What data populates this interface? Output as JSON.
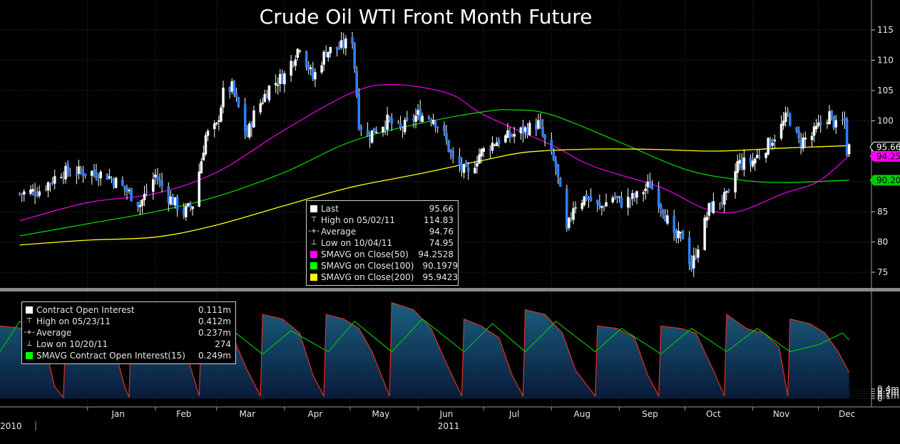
{
  "chart_data": [
    {
      "type": "candlestick",
      "title": "Crude Oil WTI Front Month Future",
      "y_ticks": [
        "115",
        "110",
        "105",
        "100",
        "95",
        "90",
        "85",
        "80",
        "75"
      ],
      "ylim": [
        73,
        118
      ],
      "grid": true,
      "price_flags": [
        {
          "label": "95.66",
          "value": 95.66,
          "color": "#ffffff"
        },
        {
          "label": "94.25",
          "value": 94.25,
          "color": "#ff00ff"
        },
        {
          "label": "90.20",
          "value": 90.1979,
          "color": "#00cc00"
        }
      ],
      "close_path": [
        {
          "date": "2010-12-01",
          "close": 88.0
        },
        {
          "date": "2010-12-10",
          "close": 88.5
        },
        {
          "date": "2010-12-20",
          "close": 91.5
        },
        {
          "date": "2011-01-03",
          "close": 91.5
        },
        {
          "date": "2011-01-10",
          "close": 91.0
        },
        {
          "date": "2011-01-18",
          "close": 88.8
        },
        {
          "date": "2011-01-25",
          "close": 86.2
        },
        {
          "date": "2011-02-01",
          "close": 91.0
        },
        {
          "date": "2011-02-07",
          "close": 87.5
        },
        {
          "date": "2011-02-14",
          "close": 84.8
        },
        {
          "date": "2011-02-18",
          "close": 86.2
        },
        {
          "date": "2011-02-22",
          "close": 93.5
        },
        {
          "date": "2011-02-24",
          "close": 97.5
        },
        {
          "date": "2011-03-01",
          "close": 99.0
        },
        {
          "date": "2011-03-04",
          "close": 104.5
        },
        {
          "date": "2011-03-08",
          "close": 105.5
        },
        {
          "date": "2011-03-15",
          "close": 97.5
        },
        {
          "date": "2011-03-18",
          "close": 101.0
        },
        {
          "date": "2011-03-25",
          "close": 105.5
        },
        {
          "date": "2011-04-01",
          "close": 107.5
        },
        {
          "date": "2011-04-08",
          "close": 112.5
        },
        {
          "date": "2011-04-14",
          "close": 107.0
        },
        {
          "date": "2011-04-20",
          "close": 111.5
        },
        {
          "date": "2011-04-26",
          "close": 112.0
        },
        {
          "date": "2011-05-02",
          "close": 113.5
        },
        {
          "date": "2011-05-05",
          "close": 99.8
        },
        {
          "date": "2011-05-09",
          "close": 97.2
        },
        {
          "date": "2011-05-12",
          "close": 98.5
        },
        {
          "date": "2011-05-18",
          "close": 100.0
        },
        {
          "date": "2011-05-24",
          "close": 98.5
        },
        {
          "date": "2011-06-01",
          "close": 101.0
        },
        {
          "date": "2011-06-08",
          "close": 100.5
        },
        {
          "date": "2011-06-13",
          "close": 97.5
        },
        {
          "date": "2011-06-17",
          "close": 93.5
        },
        {
          "date": "2011-06-24",
          "close": 91.0
        },
        {
          "date": "2011-06-29",
          "close": 94.5
        },
        {
          "date": "2011-07-06",
          "close": 96.5
        },
        {
          "date": "2011-07-13",
          "close": 97.5
        },
        {
          "date": "2011-07-20",
          "close": 98.5
        },
        {
          "date": "2011-07-26",
          "close": 99.5
        },
        {
          "date": "2011-07-29",
          "close": 96.5
        },
        {
          "date": "2011-08-03",
          "close": 92.5
        },
        {
          "date": "2011-08-08",
          "close": 81.5
        },
        {
          "date": "2011-08-11",
          "close": 86.0
        },
        {
          "date": "2011-08-17",
          "close": 87.5
        },
        {
          "date": "2011-08-23",
          "close": 85.5
        },
        {
          "date": "2011-08-29",
          "close": 87.5
        },
        {
          "date": "2011-09-02",
          "close": 86.5
        },
        {
          "date": "2011-09-09",
          "close": 87.5
        },
        {
          "date": "2011-09-15",
          "close": 89.5
        },
        {
          "date": "2011-09-21",
          "close": 85.5
        },
        {
          "date": "2011-09-26",
          "close": 80.5
        },
        {
          "date": "2011-09-30",
          "close": 81.0
        },
        {
          "date": "2011-10-04",
          "close": 75.8
        },
        {
          "date": "2011-10-07",
          "close": 79.5
        },
        {
          "date": "2011-10-12",
          "close": 85.5
        },
        {
          "date": "2011-10-18",
          "close": 87.0
        },
        {
          "date": "2011-10-21",
          "close": 87.5
        },
        {
          "date": "2011-10-25",
          "close": 93.0
        },
        {
          "date": "2011-10-31",
          "close": 93.0
        },
        {
          "date": "2011-11-04",
          "close": 94.5
        },
        {
          "date": "2011-11-09",
          "close": 96.5
        },
        {
          "date": "2011-11-14",
          "close": 99.0
        },
        {
          "date": "2011-11-17",
          "close": 101.0
        },
        {
          "date": "2011-11-22",
          "close": 96.5
        },
        {
          "date": "2011-11-28",
          "close": 97.5
        },
        {
          "date": "2011-12-02",
          "close": 99.5
        },
        {
          "date": "2011-12-06",
          "close": 101.0
        },
        {
          "date": "2011-12-09",
          "close": 99.0
        },
        {
          "date": "2011-12-13",
          "close": 100.0
        },
        {
          "date": "2011-12-14",
          "close": 94.95
        },
        {
          "date": "2011-12-15",
          "close": 95.66
        }
      ],
      "series": [
        {
          "name": "SMAVG on Close(50)",
          "color": "#e000e0",
          "points": [
            [
              "2010-12-01",
              83.5
            ],
            [
              "2011-01-01",
              86.5
            ],
            [
              "2011-02-01",
              88.0
            ],
            [
              "2011-03-01",
              91.5
            ],
            [
              "2011-04-01",
              98.5
            ],
            [
              "2011-05-01",
              104.5
            ],
            [
              "2011-05-20",
              106.0
            ],
            [
              "2011-06-15",
              104.5
            ],
            [
              "2011-07-01",
              101.0
            ],
            [
              "2011-08-01",
              96.0
            ],
            [
              "2011-08-20",
              92.5
            ],
            [
              "2011-09-20",
              89.0
            ],
            [
              "2011-10-10",
              85.5
            ],
            [
              "2011-10-25",
              85.0
            ],
            [
              "2011-11-15",
              88.0
            ],
            [
              "2011-12-01",
              90.0
            ],
            [
              "2011-12-15",
              94.25
            ]
          ]
        },
        {
          "name": "SMAVG on Close(100)",
          "color": "#00d000",
          "points": [
            [
              "2010-12-01",
              81.0
            ],
            [
              "2011-01-01",
              83.0
            ],
            [
              "2011-02-01",
              85.0
            ],
            [
              "2011-03-01",
              87.5
            ],
            [
              "2011-04-01",
              91.5
            ],
            [
              "2011-05-01",
              96.5
            ],
            [
              "2011-06-01",
              99.5
            ],
            [
              "2011-07-01",
              101.5
            ],
            [
              "2011-07-15",
              101.8
            ],
            [
              "2011-08-01",
              101.0
            ],
            [
              "2011-09-01",
              96.5
            ],
            [
              "2011-10-01",
              92.0
            ],
            [
              "2011-10-25",
              90.3
            ],
            [
              "2011-11-15",
              89.8
            ],
            [
              "2011-12-15",
              90.2
            ]
          ]
        },
        {
          "name": "SMAVG on Close(200)",
          "color": "#ffff00",
          "points": [
            [
              "2010-12-01",
              79.5
            ],
            [
              "2011-01-01",
              80.3
            ],
            [
              "2011-02-01",
              80.8
            ],
            [
              "2011-03-01",
              82.8
            ],
            [
              "2011-04-01",
              86.0
            ],
            [
              "2011-05-01",
              89.0
            ],
            [
              "2011-06-01",
              91.2
            ],
            [
              "2011-07-01",
              93.5
            ],
            [
              "2011-07-20",
              94.8
            ],
            [
              "2011-08-15",
              95.3
            ],
            [
              "2011-09-15",
              95.3
            ],
            [
              "2011-10-15",
              95.0
            ],
            [
              "2011-11-15",
              95.5
            ],
            [
              "2011-12-15",
              95.9
            ]
          ]
        }
      ],
      "legend": {
        "rows": [
          {
            "label": "Last",
            "value": "95.66",
            "color": "#ffffff",
            "symbol": ""
          },
          {
            "label": "High on 05/02/11",
            "value": "114.83",
            "color": "",
            "symbol": "⊤"
          },
          {
            "label": "Average",
            "value": "94.76",
            "color": "",
            "symbol": "-+-"
          },
          {
            "label": "Low on 10/04/11",
            "value": "74.95",
            "color": "",
            "symbol": "⊥"
          },
          {
            "label": "SMAVG on Close(50)",
            "value": "94.2528",
            "color": "#ff00ff",
            "symbol": ""
          },
          {
            "label": "SMAVG on Close(100)",
            "value": "90.1979",
            "color": "#00ff00",
            "symbol": ""
          },
          {
            "label": "SMAVG on Close(200)",
            "value": "95.9423",
            "color": "#ffff00",
            "symbol": ""
          }
        ]
      }
    },
    {
      "type": "area",
      "y_ticks": [
        "0.4m",
        "0.3m",
        "0.2m",
        "0.1m",
        "0"
      ],
      "ylim": [
        -0.02,
        0.44
      ],
      "fill_color": "#1a5f80",
      "line_color": "#e03020",
      "open_interest": [
        [
          "2010-11-22",
          0.31
        ],
        [
          "2010-12-03",
          0.3
        ],
        [
          "2010-12-12",
          0.25
        ],
        [
          "2010-12-17",
          0.05
        ],
        [
          "2010-12-21",
          0.004
        ],
        [
          "2010-12-22",
          0.31
        ],
        [
          "2011-01-05",
          0.3
        ],
        [
          "2011-01-12",
          0.26
        ],
        [
          "2011-01-18",
          0.05
        ],
        [
          "2011-01-20",
          0.004
        ],
        [
          "2011-01-21",
          0.41
        ],
        [
          "2011-01-30",
          0.38
        ],
        [
          "2011-02-08",
          0.3
        ],
        [
          "2011-02-15",
          0.2
        ],
        [
          "2011-02-21",
          0.01
        ],
        [
          "2011-02-22",
          0.31
        ],
        [
          "2011-03-01",
          0.29
        ],
        [
          "2011-03-09",
          0.25
        ],
        [
          "2011-03-15",
          0.12
        ],
        [
          "2011-03-21",
          0.01
        ],
        [
          "2011-03-22",
          0.36
        ],
        [
          "2011-03-31",
          0.34
        ],
        [
          "2011-04-08",
          0.28
        ],
        [
          "2011-04-14",
          0.1
        ],
        [
          "2011-04-19",
          0.01
        ],
        [
          "2011-04-20",
          0.36
        ],
        [
          "2011-04-28",
          0.34
        ],
        [
          "2011-05-05",
          0.3
        ],
        [
          "2011-05-11",
          0.2
        ],
        [
          "2011-05-19",
          0.01
        ],
        [
          "2011-05-20",
          0.41
        ],
        [
          "2011-05-30",
          0.38
        ],
        [
          "2011-06-07",
          0.3
        ],
        [
          "2011-06-14",
          0.15
        ],
        [
          "2011-06-21",
          0.01
        ],
        [
          "2011-06-22",
          0.34
        ],
        [
          "2011-06-30",
          0.31
        ],
        [
          "2011-07-08",
          0.26
        ],
        [
          "2011-07-14",
          0.1
        ],
        [
          "2011-07-19",
          0.01
        ],
        [
          "2011-07-20",
          0.38
        ],
        [
          "2011-07-29",
          0.36
        ],
        [
          "2011-08-06",
          0.28
        ],
        [
          "2011-08-12",
          0.12
        ],
        [
          "2011-08-21",
          0.01
        ],
        [
          "2011-08-22",
          0.31
        ],
        [
          "2011-08-31",
          0.3
        ],
        [
          "2011-09-08",
          0.26
        ],
        [
          "2011-09-14",
          0.1
        ],
        [
          "2011-09-19",
          0.01
        ],
        [
          "2011-09-20",
          0.31
        ],
        [
          "2011-09-29",
          0.3
        ],
        [
          "2011-10-06",
          0.28
        ],
        [
          "2011-10-14",
          0.12
        ],
        [
          "2011-10-19",
          0.01
        ],
        [
          "2011-10-20",
          0.36
        ],
        [
          "2011-10-29",
          0.3
        ],
        [
          "2011-11-06",
          0.28
        ],
        [
          "2011-11-13",
          0.22
        ],
        [
          "2011-11-17",
          0.01
        ],
        [
          "2011-11-18",
          0.34
        ],
        [
          "2011-11-27",
          0.32
        ],
        [
          "2011-12-04",
          0.28
        ],
        [
          "2011-12-10",
          0.2
        ],
        [
          "2011-12-15",
          0.111
        ]
      ],
      "series": [
        {
          "name": "SMAVG Contract Open Interest(15)",
          "color": "#00c000",
          "points": [
            [
              "2010-11-22",
              0.2
            ],
            [
              "2010-12-01",
              0.33
            ],
            [
              "2010-12-22",
              0.19
            ],
            [
              "2011-01-04",
              0.3
            ],
            [
              "2011-01-21",
              0.19
            ],
            [
              "2011-02-03",
              0.33
            ],
            [
              "2011-02-21",
              0.2
            ],
            [
              "2011-03-07",
              0.3
            ],
            [
              "2011-03-22",
              0.19
            ],
            [
              "2011-04-04",
              0.29
            ],
            [
              "2011-04-21",
              0.2
            ],
            [
              "2011-05-03",
              0.33
            ],
            [
              "2011-05-20",
              0.2
            ],
            [
              "2011-06-03",
              0.34
            ],
            [
              "2011-06-22",
              0.2
            ],
            [
              "2011-07-05",
              0.32
            ],
            [
              "2011-07-20",
              0.2
            ],
            [
              "2011-08-03",
              0.33
            ],
            [
              "2011-08-21",
              0.2
            ],
            [
              "2011-09-02",
              0.3
            ],
            [
              "2011-09-20",
              0.19
            ],
            [
              "2011-10-04",
              0.3
            ],
            [
              "2011-10-20",
              0.2
            ],
            [
              "2011-11-03",
              0.3
            ],
            [
              "2011-11-18",
              0.2
            ],
            [
              "2011-12-01",
              0.23
            ],
            [
              "2011-12-12",
              0.28
            ],
            [
              "2011-12-15",
              0.25
            ]
          ]
        }
      ],
      "legend": {
        "rows": [
          {
            "label": "Contract Open Interest",
            "value": "0.111m",
            "color": "#ffffff",
            "symbol": ""
          },
          {
            "label": "High on 05/23/11",
            "value": "0.412m",
            "color": "",
            "symbol": "⊤"
          },
          {
            "label": "Average",
            "value": "0.237m",
            "color": "",
            "symbol": "-+-"
          },
          {
            "label": "Low on 10/20/11",
            "value": "274",
            "color": "",
            "symbol": "⊥"
          },
          {
            "label": "SMAVG Contract Open Interest(15)",
            "value": "0.249m",
            "color": "#00ff00",
            "symbol": ""
          }
        ]
      }
    }
  ],
  "x_axis": {
    "months": [
      {
        "label": "Jan",
        "date": "2011-01-15"
      },
      {
        "label": "Feb",
        "date": "2011-02-14"
      },
      {
        "label": "Mar",
        "date": "2011-03-15"
      },
      {
        "label": "Apr",
        "date": "2011-04-15"
      },
      {
        "label": "May",
        "date": "2011-05-15"
      },
      {
        "label": "Jun",
        "date": "2011-06-14"
      },
      {
        "label": "Jul",
        "date": "2011-07-15"
      },
      {
        "label": "Aug",
        "date": "2011-08-15"
      },
      {
        "label": "Sep",
        "date": "2011-09-15"
      },
      {
        "label": "Oct",
        "date": "2011-10-14"
      },
      {
        "label": "Nov",
        "date": "2011-11-14"
      },
      {
        "label": "Dec",
        "date": "2011-12-14"
      }
    ],
    "month_starts": [
      "2011-01-01",
      "2011-02-01",
      "2011-03-01",
      "2011-04-01",
      "2011-05-01",
      "2011-06-01",
      "2011-07-01",
      "2011-08-01",
      "2011-09-01",
      "2011-10-01",
      "2011-11-01",
      "2011-12-01"
    ],
    "year_labels": [
      {
        "label": "2010",
        "date": "2010-11-27"
      },
      {
        "label": "2011",
        "date": "2011-06-15"
      }
    ],
    "date_range": [
      "2010-11-22",
      "2011-12-20"
    ]
  }
}
